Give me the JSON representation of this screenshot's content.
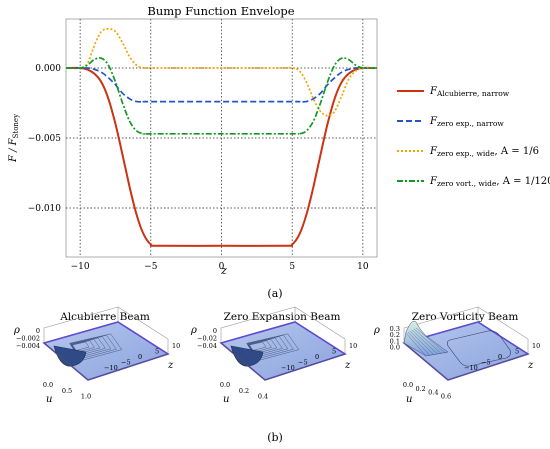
{
  "top_panel": {
    "caption": "(a)",
    "chart_data": {
      "type": "line",
      "title": "Bump Function Envelope",
      "xlabel": "z",
      "ylabel": "F / F_Stoney",
      "xlim": [
        -11,
        11
      ],
      "ylim": [
        -0.0135,
        0.0035
      ],
      "xticks": [
        -10,
        -5,
        0,
        5,
        10
      ],
      "xtick_labels": [
        "−10",
        "−5",
        "0",
        "5",
        "10"
      ],
      "yticks": [
        0.0,
        -0.005,
        -0.01
      ],
      "ytick_labels": [
        "0.000",
        "−0.005",
        "−0.010"
      ],
      "grid": "dotted black at ticks",
      "legend_position": "right, outside plot",
      "series": [
        {
          "name": "F_Alcubierre, narrow",
          "legend_main": "F",
          "legend_sub": "Alcubierre, narrow",
          "legend_suffix": "",
          "color": "#cc3311",
          "dash": "solid",
          "x": [
            -11,
            -10,
            -9.5,
            -9,
            -8.5,
            -8,
            -7.5,
            -7,
            -6.5,
            -6,
            -5.5,
            -5,
            -4.5,
            0,
            4.5,
            5,
            5.5,
            6,
            6.5,
            7,
            7.5,
            8,
            8.5,
            9,
            9.5,
            10,
            11
          ],
          "y": [
            0,
            0,
            -0.0001,
            -0.0004,
            -0.001,
            -0.0022,
            -0.004,
            -0.0062,
            -0.0085,
            -0.0105,
            -0.0119,
            -0.0126,
            -0.0127,
            -0.0127,
            -0.0127,
            -0.0126,
            -0.0119,
            -0.0105,
            -0.0085,
            -0.0062,
            -0.004,
            -0.0022,
            -0.001,
            -0.0004,
            -0.0001,
            0,
            0
          ]
        },
        {
          "name": "F_zero exp., narrow",
          "legend_main": "F",
          "legend_sub": "zero exp., narrow",
          "legend_suffix": "",
          "color": "#2255cc",
          "dash": "6,3",
          "x": [
            -11,
            -9.5,
            -9,
            -8.5,
            -8,
            -7.5,
            -7,
            -6.5,
            -6,
            -5.5,
            -5,
            0,
            5,
            5.5,
            6,
            6.5,
            7,
            7.5,
            8,
            8.5,
            9,
            9.5,
            11
          ],
          "y": [
            0,
            0,
            -0.0001,
            -0.0003,
            -0.0007,
            -0.0012,
            -0.0018,
            -0.0022,
            -0.0024,
            -0.0024,
            -0.0024,
            -0.0024,
            -0.0024,
            -0.0024,
            -0.0024,
            -0.0022,
            -0.0018,
            -0.0012,
            -0.0007,
            -0.0003,
            -0.0001,
            0,
            0
          ]
        },
        {
          "name": "F_zero exp., wide, A = 1/6",
          "legend_main": "F",
          "legend_sub": "zero exp., wide",
          "legend_suffix": ", A = 1/6",
          "color": "#f0a500",
          "dash": "2,2",
          "x": [
            -11,
            -10,
            -9.5,
            -9,
            -8.5,
            -8,
            -7.5,
            -7,
            -6.5,
            -6,
            -5.5,
            -5,
            0,
            4,
            5,
            5.5,
            6,
            6.5,
            7,
            7.5,
            8,
            8.5,
            9,
            9.5,
            10,
            11
          ],
          "y": [
            0,
            0,
            0.0003,
            0.0016,
            0.0026,
            0.0028,
            0.0026,
            0.0018,
            0.0008,
            0.0002,
            0.0,
            0.0,
            0.0,
            0.0,
            0.0,
            -0.0002,
            -0.001,
            -0.0022,
            -0.0031,
            -0.0034,
            -0.0031,
            -0.002,
            -0.0008,
            -0.0002,
            0,
            0
          ]
        },
        {
          "name": "F_zero vort., wide, A = 1/120",
          "legend_main": "F",
          "legend_sub": "zero vort., wide",
          "legend_suffix": ", A = 1/120",
          "color": "#119922",
          "dash": "6,2,2,2",
          "x": [
            -11,
            -10,
            -9.5,
            -9,
            -8.5,
            -8,
            -7.5,
            -7,
            -6.5,
            -6,
            -5.5,
            -5,
            0,
            5,
            5.5,
            6,
            6.5,
            7,
            7.5,
            8,
            8.5,
            9,
            9.5,
            10,
            11
          ],
          "y": [
            0,
            0,
            0.0002,
            0.0006,
            0.0007,
            0.0002,
            -0.001,
            -0.0025,
            -0.0038,
            -0.0045,
            -0.0047,
            -0.0047,
            -0.0047,
            -0.0047,
            -0.0047,
            -0.0045,
            -0.0038,
            -0.0025,
            -0.001,
            0.0002,
            0.0007,
            0.0006,
            0.0002,
            0,
            0
          ]
        }
      ]
    }
  },
  "bottom_panel": {
    "caption": "(b)",
    "plots": [
      {
        "title": "Alcubierre Beam",
        "axis_rho": "ρ",
        "axis_u": "u",
        "axis_z": "z",
        "rho_ticks": [
          "0",
          "−0.002",
          "−0.004"
        ],
        "u_ticks": [
          "0.0",
          "0.5",
          "1.0"
        ],
        "z_ticks": [
          "10",
          "5",
          "0",
          "−5",
          "−10"
        ],
        "surface": "dip"
      },
      {
        "title": "Zero Expansion Beam",
        "axis_rho": "ρ",
        "axis_u": "u",
        "axis_z": "z",
        "rho_ticks": [
          "0",
          "−0.02",
          "−0.04"
        ],
        "u_ticks": [
          "0.0",
          "0.2",
          "0.4"
        ],
        "z_ticks": [
          "10",
          "5",
          "0",
          "−5",
          "−10"
        ],
        "surface": "dip"
      },
      {
        "title": "Zero Vorticity Beam",
        "axis_rho": "ρ",
        "axis_u": "u",
        "axis_z": "z",
        "rho_ticks": [
          "0.3",
          "0.2",
          "0.1",
          "0.0"
        ],
        "u_ticks": [
          "0.0",
          "0.2",
          "0.4",
          "0.6"
        ],
        "z_ticks": [
          "10",
          "5",
          "0",
          "−5",
          "−10"
        ],
        "surface": "peak"
      }
    ]
  }
}
